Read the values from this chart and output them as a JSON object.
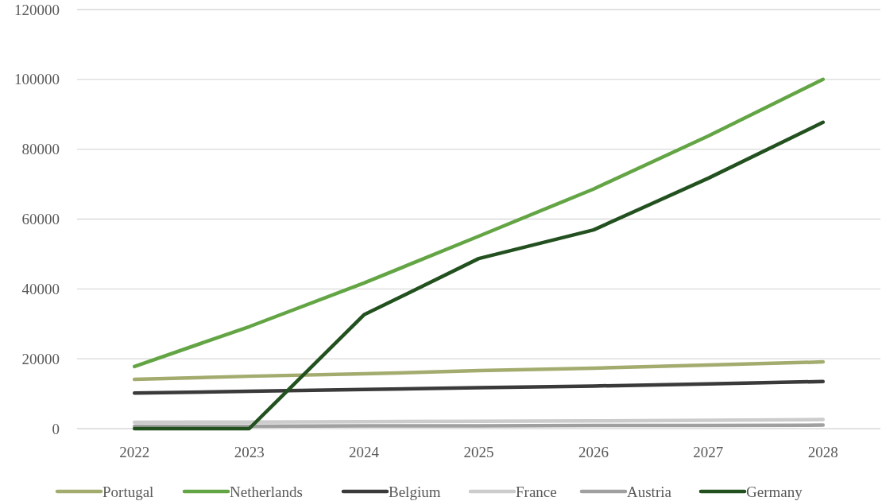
{
  "chart_data": {
    "type": "line",
    "categories": [
      "2022",
      "2023",
      "2024",
      "2025",
      "2026",
      "2027",
      "2028"
    ],
    "series": [
      {
        "name": "Portugal",
        "color": "#a3ac6e",
        "values": [
          14100,
          15000,
          15700,
          16600,
          17300,
          18200,
          19100
        ]
      },
      {
        "name": "Netherlands",
        "color": "#63a544",
        "values": [
          17800,
          29200,
          41700,
          55100,
          68600,
          83800,
          100000
        ]
      },
      {
        "name": "Belgium",
        "color": "#3a3a3a",
        "values": [
          10200,
          10700,
          11200,
          11700,
          12200,
          12800,
          13500
        ]
      },
      {
        "name": "France",
        "color": "#cccccc",
        "values": [
          1800,
          1900,
          2000,
          2100,
          2200,
          2400,
          2600
        ]
      },
      {
        "name": "Austria",
        "color": "#a0a0a0",
        "values": [
          700,
          700,
          800,
          800,
          900,
          900,
          1000
        ]
      },
      {
        "name": "Germany",
        "color": "#22511f",
        "values": [
          0,
          0,
          32600,
          48700,
          56900,
          71700,
          87700
        ]
      }
    ],
    "ylim": [
      0,
      120000
    ],
    "yticks": [
      0,
      20000,
      40000,
      60000,
      80000,
      100000,
      120000
    ],
    "grid": "y",
    "legend": "bottom",
    "marker": "none",
    "line_style": "solid"
  }
}
